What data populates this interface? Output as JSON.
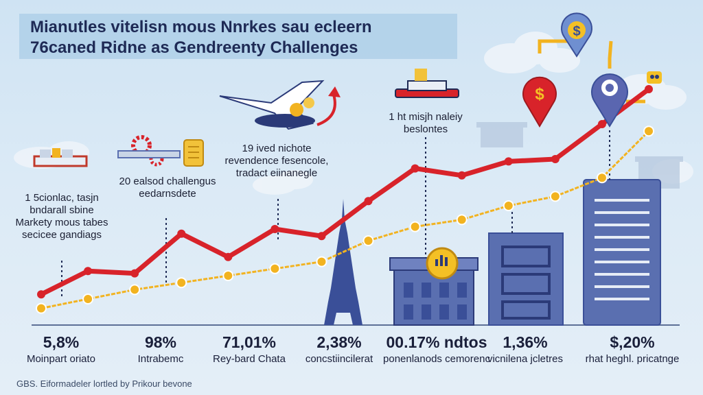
{
  "title": {
    "line1": "Mianutles vitelisn mous Nnrkes sau ecleern",
    "line2": "76caned Ridne as Gendreenty Challenges"
  },
  "annotations": [
    "1 5cionlac, tasjn bndarall sbine Markety mous tabes secicee gandiags",
    "20 ealsod challengus eedarnsdete",
    "19 ived nichote revendence fesencole, tradact eiinanegle",
    "1 ht misjh naleiy beslontes"
  ],
  "stats": [
    {
      "value": "5,8%",
      "label": "Moinpart oriato"
    },
    {
      "value": "98%",
      "label": "Intrabemc"
    },
    {
      "value": "71,01%",
      "label": "Rey-bard Chata"
    },
    {
      "value": "2,38%",
      "label": "concstiincilerat"
    },
    {
      "value": "00.17% ndtos",
      "label": "ponenlanods cemorenc"
    },
    {
      "value": "1,36%",
      "label": "vicnilena jcletres"
    },
    {
      "value": "$,20%",
      "label": "rhat heghl. pricatnge"
    }
  ],
  "icons": {
    "pin_red_symbol": "$",
    "pin_blue_top_symbol": "$"
  },
  "source": "GBS. Eiformadeler lortled by Prikour bevone",
  "chart_data": {
    "type": "line",
    "title": "Mianutles vitelisn mous Nnrkes sau ecleern 76caned Ridne as Gendreenty Challenges",
    "xlabel": "",
    "ylabel": "",
    "grid": false,
    "legend": "none",
    "ylim": [
      0,
      100
    ],
    "x": [
      1,
      2,
      3,
      4,
      5,
      6,
      7,
      8,
      9,
      10,
      11,
      12,
      13,
      14
    ],
    "series": [
      {
        "color": "#d8232a",
        "values": [
          12,
          22,
          21,
          38,
          28,
          40,
          37,
          52,
          66,
          63,
          69,
          70,
          85,
          100
        ]
      },
      {
        "color": "#f2b320",
        "values": [
          6,
          10,
          14,
          17,
          20,
          23,
          26,
          35,
          41,
          44,
          50,
          54,
          62,
          82
        ]
      }
    ]
  },
  "colors": {
    "red_line": "#d8232a",
    "yellow_line": "#f2b320",
    "building": "#5a6fb0",
    "tower": "#3a4f98",
    "pin_red": "#d8232a",
    "pin_blue": "#5a66b0",
    "coin": "#f4c025"
  }
}
